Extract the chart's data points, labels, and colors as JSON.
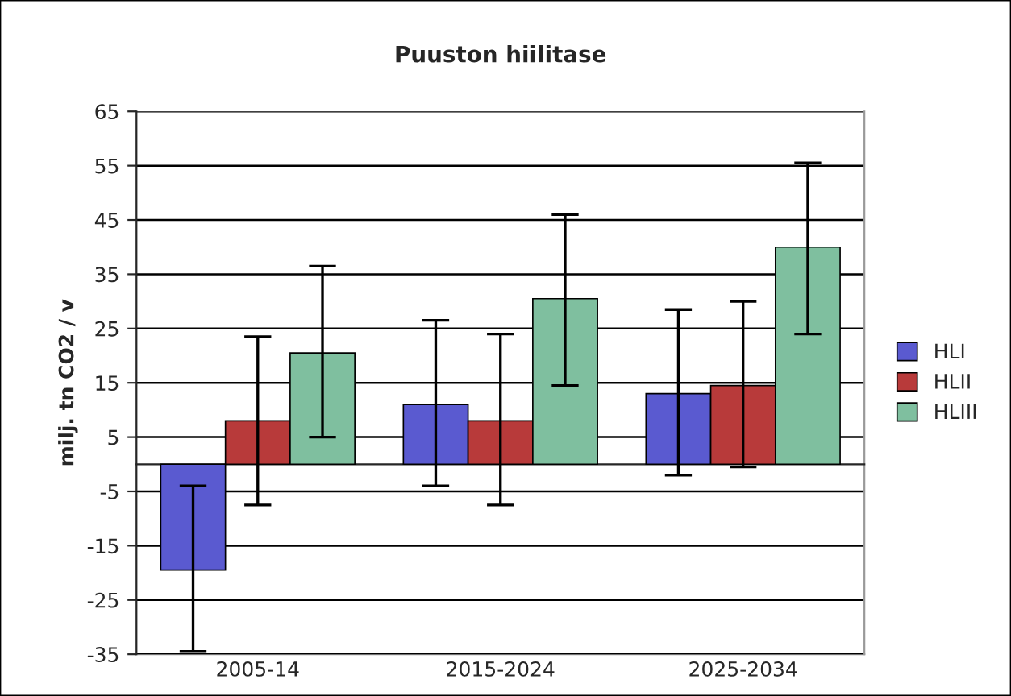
{
  "chart_data": {
    "type": "bar",
    "title": "Puuston hiilitase",
    "ylabel": "milj. tn CO2 / v",
    "categories": [
      "2005-14",
      "2015-2024",
      "2025-2034"
    ],
    "series": [
      {
        "name": "HLI",
        "color": "#5a5ad0",
        "values": [
          -19.5,
          11,
          13
        ],
        "errors": [
          [
            -34.5,
            -4
          ],
          [
            -4,
            26.5
          ],
          [
            -2,
            28.5
          ]
        ]
      },
      {
        "name": "HLII",
        "color": "#b83a3a",
        "values": [
          8,
          8,
          14.5
        ],
        "errors": [
          [
            -7.5,
            23.5
          ],
          [
            -7.5,
            24
          ],
          [
            -0.5,
            30
          ]
        ]
      },
      {
        "name": "HLIII",
        "color": "#7fbf9f",
        "values": [
          20.5,
          30.5,
          40
        ],
        "errors": [
          [
            5,
            36.5
          ],
          [
            14.5,
            46
          ],
          [
            24,
            55.5
          ]
        ]
      }
    ],
    "ylim": [
      -35,
      65
    ],
    "yticks": [
      -35,
      -25,
      -15,
      -5,
      5,
      15,
      25,
      35,
      45,
      55,
      65
    ],
    "grid": "y",
    "legend": "right"
  }
}
